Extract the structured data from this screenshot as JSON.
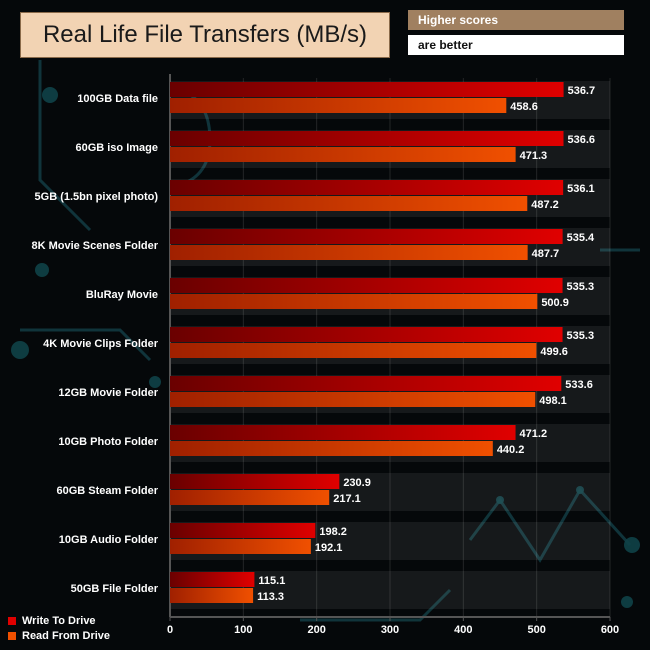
{
  "header": {
    "title": "Real Life File Transfers (MB/s)",
    "note_line1": "Higher scores",
    "note_line2": "are better"
  },
  "colors": {
    "write": "#e00000",
    "read": "#f05000",
    "axis": "#555555",
    "label": "#ffffff"
  },
  "chart_data": {
    "type": "bar",
    "orientation": "horizontal",
    "title": "Real Life File Transfers (MB/s)",
    "categories": [
      "100GB Data file",
      "60GB iso Image",
      "5GB (1.5bn pixel photo)",
      "8K Movie Scenes Folder",
      "BluRay Movie",
      "4K Movie Clips Folder",
      "12GB Movie Folder",
      "10GB Photo Folder",
      "60GB Steam Folder",
      "10GB Audio Folder",
      "50GB File Folder"
    ],
    "series": [
      {
        "name": "Write To  Drive",
        "values": [
          536.7,
          536.6,
          536.1,
          535.4,
          535.3,
          535.3,
          533.6,
          471.2,
          230.9,
          198.2,
          115.1
        ],
        "labels": [
          "536.7",
          "536.6",
          "536.1",
          "535.4",
          "535.3",
          "535.3",
          "533.6",
          "471.2",
          "230.9",
          "198.2",
          "115.1"
        ]
      },
      {
        "name": "Read From  Drive",
        "values": [
          458.6,
          471.3,
          487.2,
          487.7,
          500.9,
          499.6,
          498.1,
          440.2,
          217.1,
          192.1,
          113.3
        ],
        "labels": [
          "458.6",
          "471.3",
          "487.2",
          "487.7",
          "500.9",
          "499.6",
          "498.1",
          "440.2",
          "217.1",
          "192.1",
          "113.3"
        ]
      }
    ],
    "xlim": [
      0,
      600
    ],
    "xticks": [
      0,
      100,
      200,
      300,
      400,
      500,
      600
    ],
    "xtick_labels": [
      "0",
      "100",
      "200",
      "300",
      "400",
      "500",
      "600"
    ],
    "legend_position": "bottom-left"
  }
}
